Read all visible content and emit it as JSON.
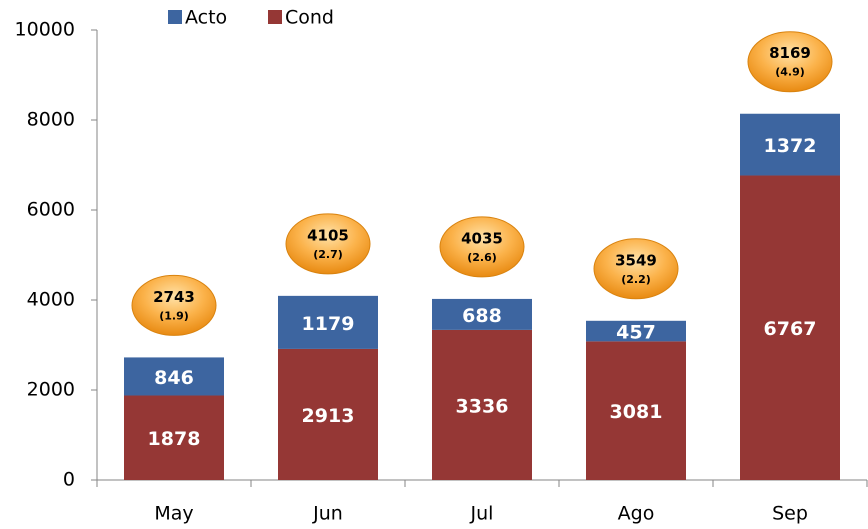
{
  "chart_data": {
    "type": "stacked_bar",
    "categories": [
      "May",
      "Jun",
      "Jul",
      "Ago",
      "Sep"
    ],
    "series": [
      {
        "name": "Cond",
        "color": "#953735",
        "values": [
          1878,
          2913,
          3336,
          3081,
          6767
        ]
      },
      {
        "name": "Acto",
        "color": "#3d65a0",
        "values": [
          846,
          1179,
          688,
          457,
          1372
        ]
      }
    ],
    "annotations": [
      {
        "total": 2743,
        "note": "(1.9)"
      },
      {
        "total": 4105,
        "note": "(2.7)"
      },
      {
        "total": 4035,
        "note": "(2.6)"
      },
      {
        "total": 3549,
        "note": "(2.2)"
      },
      {
        "total": 8169,
        "note": "(4.9)"
      }
    ],
    "ylim": [
      0,
      10000
    ],
    "yticks": [
      0,
      2000,
      4000,
      6000,
      8000,
      10000
    ],
    "legend": "top"
  }
}
